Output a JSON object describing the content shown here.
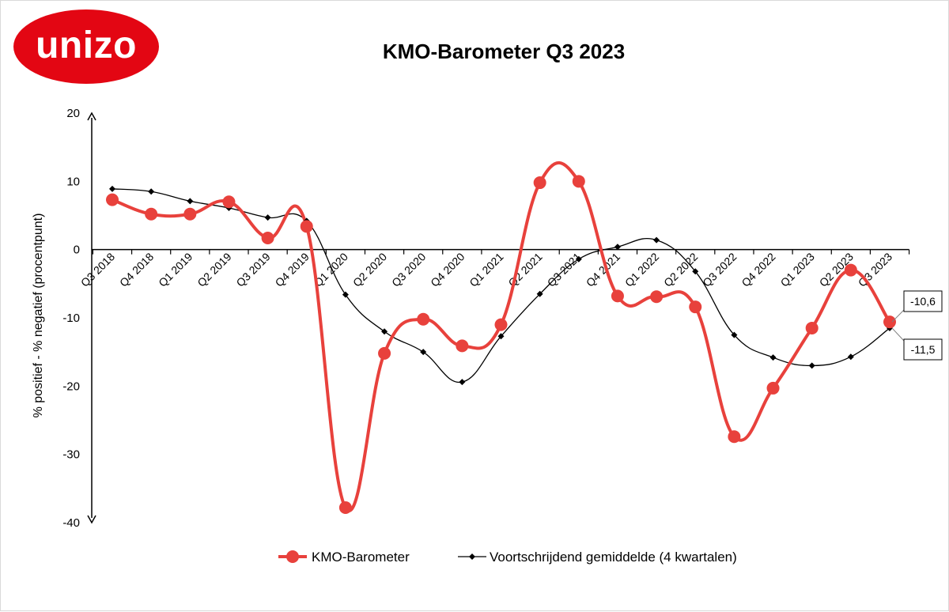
{
  "logo": {
    "text": "unizo",
    "color": "#e30613"
  },
  "chart_data": {
    "type": "line",
    "title": "KMO-Barometer Q3 2023",
    "ylabel": "% positief - % negatief (procentpunt)",
    "xlabel": "",
    "ylim": [
      -40,
      20
    ],
    "yticks": [
      20,
      10,
      0,
      -10,
      -20,
      -30,
      -40
    ],
    "categories": [
      "Q3 2018",
      "Q4 2018",
      "Q1 2019",
      "Q2 2019",
      "Q3 2019",
      "Q4 2019",
      "Q1 2020",
      "Q2 2020",
      "Q3 2020",
      "Q4 2020",
      "Q1 2021",
      "Q2 2021",
      "Q3 2021",
      "Q4 2021",
      "Q1 2022",
      "Q2 2022",
      "Q3 2022",
      "Q4 2022",
      "Q1 2023",
      "Q2 2023",
      "Q3 2023"
    ],
    "series": [
      {
        "name": "KMO-Barometer",
        "color": "#e8413c",
        "values": [
          7.3,
          5.2,
          5.2,
          7.0,
          1.7,
          3.4,
          -37.8,
          -15.2,
          -10.2,
          -14.1,
          -11.0,
          9.8,
          10.0,
          -6.8,
          -6.9,
          -8.4,
          -27.4,
          -20.3,
          -11.5,
          -3.0,
          -10.6
        ]
      },
      {
        "name": "Voortschrijdend gemiddelde (4 kwartalen)",
        "color": "#000000",
        "values": [
          8.9,
          8.5,
          7.1,
          6.1,
          4.7,
          4.2,
          -6.6,
          -12.0,
          -15.0,
          -19.4,
          -12.7,
          -6.5,
          -1.4,
          0.4,
          1.4,
          -3.2,
          -12.5,
          -15.8,
          -17.0,
          -15.7,
          -11.5
        ]
      }
    ],
    "annotations": [
      {
        "series": "KMO-Barometer",
        "category": "Q3 2023",
        "text": "-10,6"
      },
      {
        "series": "Voortschrijdend gemiddelde (4 kwartalen)",
        "category": "Q3 2023",
        "text": "-11,5"
      }
    ],
    "legend": {
      "placement": "bottom"
    },
    "grid": false
  }
}
